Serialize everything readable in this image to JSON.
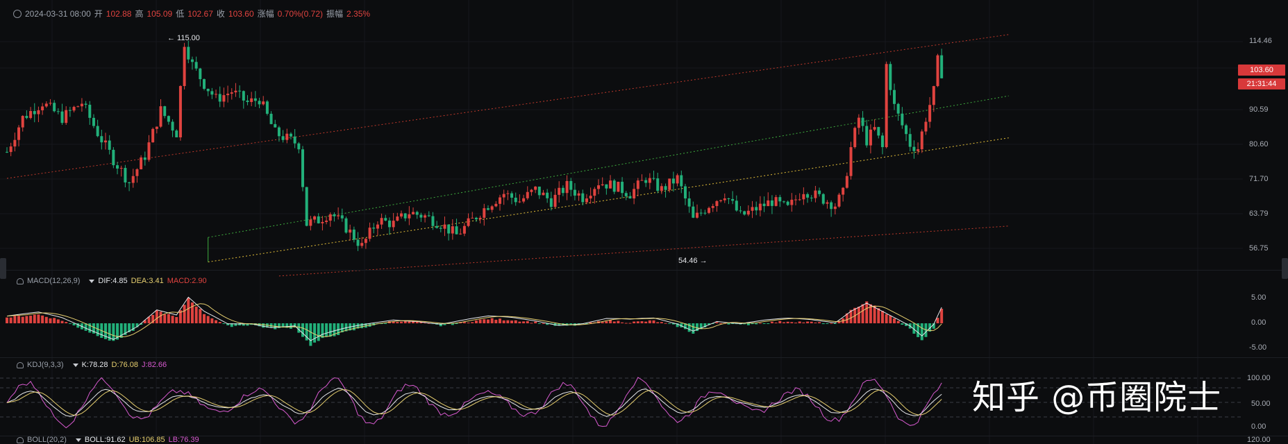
{
  "header": {
    "datetime": "2024-03-31 08:00",
    "open_label": "开",
    "open": "102.88",
    "high_label": "高",
    "high": "105.09",
    "low_label": "低",
    "low": "102.67",
    "close_label": "收",
    "close": "103.60",
    "change_label": "涨幅",
    "change": "0.70%(0.72)",
    "amp_label": "振幅",
    "amp": "2.35%"
  },
  "price_axis": [
    "114.46",
    "103.60",
    "90.59",
    "80.60",
    "71.70",
    "63.79",
    "56.75"
  ],
  "current_price_tag": "103.60",
  "time_tag": "21:31:44",
  "annotations": {
    "high": "← 115.00",
    "low": "54.46 →"
  },
  "macd": {
    "name": "MACD(12,26,9)",
    "dif_label": "DIF:",
    "dif": "4.85",
    "dea_label": "DEA:",
    "dea": "3.41",
    "macd_label": "MACD:",
    "macd": "2.90",
    "axis": [
      "5.00",
      "0.00",
      "-5.00"
    ]
  },
  "kdj": {
    "name": "KDJ(9,3,3)",
    "k_label": "K:",
    "k": "78.28",
    "d_label": "D:",
    "d": "76.08",
    "j_label": "J:",
    "j": "82.66",
    "axis": [
      "100.00",
      "50.00",
      "0.00"
    ]
  },
  "boll": {
    "name": "BOLL(20,2)",
    "boll_label": "BOLL:",
    "boll": "91.62",
    "ub_label": "UB:",
    "ub": "106.85",
    "lb_label": "LB:",
    "lb": "76.39",
    "axis": [
      "120.00"
    ]
  },
  "watermark": "知乎 @币圈院士",
  "colors": {
    "up": "#e0433f",
    "down": "#22b07a",
    "bg": "#0c0d0f",
    "channel_red": "#c0392b",
    "channel_green": "#3fae3f",
    "channel_yellow": "#e6c13a"
  },
  "chart_data": {
    "type": "candlestick",
    "ylim": [
      52,
      118
    ],
    "anchors": [
      [
        0,
        83
      ],
      [
        4,
        92
      ],
      [
        9,
        96
      ],
      [
        14,
        92
      ],
      [
        19,
        96
      ],
      [
        23,
        88
      ],
      [
        27,
        81
      ],
      [
        31,
        75
      ],
      [
        35,
        82
      ],
      [
        39,
        94
      ],
      [
        43,
        88
      ],
      [
        45,
        112
      ],
      [
        47,
        106
      ],
      [
        50,
        101
      ],
      [
        53,
        97
      ],
      [
        57,
        99
      ],
      [
        61,
        96
      ],
      [
        64,
        97
      ],
      [
        68,
        88
      ],
      [
        72,
        86
      ],
      [
        74,
        85
      ],
      [
        76,
        64
      ],
      [
        79,
        65
      ],
      [
        82,
        67
      ],
      [
        86,
        63
      ],
      [
        90,
        58
      ],
      [
        94,
        65
      ],
      [
        98,
        64
      ],
      [
        102,
        67
      ],
      [
        106,
        66
      ],
      [
        110,
        64
      ],
      [
        114,
        61
      ],
      [
        118,
        65
      ],
      [
        122,
        69
      ],
      [
        126,
        72
      ],
      [
        130,
        70
      ],
      [
        134,
        73
      ],
      [
        138,
        70
      ],
      [
        142,
        74
      ],
      [
        146,
        71
      ],
      [
        150,
        75
      ],
      [
        154,
        74
      ],
      [
        158,
        72
      ],
      [
        162,
        76
      ],
      [
        166,
        73
      ],
      [
        170,
        76
      ],
      [
        174,
        65
      ],
      [
        178,
        69
      ],
      [
        182,
        72
      ],
      [
        186,
        66
      ],
      [
        190,
        68
      ],
      [
        194,
        70
      ],
      [
        198,
        68
      ],
      [
        202,
        73
      ],
      [
        206,
        71
      ],
      [
        210,
        69
      ],
      [
        212,
        72
      ],
      [
        214,
        84
      ],
      [
        216,
        92
      ],
      [
        218,
        86
      ],
      [
        220,
        89
      ],
      [
        222,
        84
      ],
      [
        223,
        106
      ],
      [
        225,
        95
      ],
      [
        227,
        90
      ],
      [
        229,
        85
      ],
      [
        231,
        84
      ],
      [
        233,
        92
      ],
      [
        235,
        99
      ],
      [
        236,
        107
      ],
      [
        237,
        104
      ]
    ],
    "macd_anchors": [
      [
        0,
        1.2
      ],
      [
        8,
        1.8
      ],
      [
        14,
        0.6
      ],
      [
        20,
        -1.5
      ],
      [
        27,
        -3.8
      ],
      [
        33,
        -1.0
      ],
      [
        38,
        2.6
      ],
      [
        43,
        1.2
      ],
      [
        46,
        5.2
      ],
      [
        50,
        2.0
      ],
      [
        56,
        -0.6
      ],
      [
        62,
        -0.3
      ],
      [
        67,
        -1.1
      ],
      [
        73,
        -0.9
      ],
      [
        77,
        -4.5
      ],
      [
        80,
        -3.2
      ],
      [
        86,
        -1.8
      ],
      [
        92,
        -0.6
      ],
      [
        98,
        0.5
      ],
      [
        104,
        0.3
      ],
      [
        110,
        -0.5
      ],
      [
        116,
        0.2
      ],
      [
        122,
        0.9
      ],
      [
        128,
        0.7
      ],
      [
        134,
        0.2
      ],
      [
        140,
        -0.6
      ],
      [
        146,
        -0.3
      ],
      [
        152,
        0.6
      ],
      [
        158,
        0.2
      ],
      [
        164,
        0.5
      ],
      [
        170,
        -0.6
      ],
      [
        174,
        -2.0
      ],
      [
        180,
        0.3
      ],
      [
        186,
        -0.4
      ],
      [
        192,
        0.1
      ],
      [
        198,
        0.4
      ],
      [
        204,
        0.2
      ],
      [
        210,
        -0.2
      ],
      [
        214,
        2.6
      ],
      [
        218,
        4.5
      ],
      [
        222,
        2.5
      ],
      [
        226,
        0.4
      ],
      [
        229,
        -1.2
      ],
      [
        232,
        -3.6
      ],
      [
        235,
        -1.0
      ],
      [
        237,
        2.9
      ]
    ],
    "channels": [
      {
        "color": "red",
        "points": [
          [
            0,
            76.0
          ],
          [
            254,
            114.0
          ]
        ]
      },
      {
        "color": "green",
        "points": [
          [
            51,
            60.4
          ],
          [
            254,
            97.8
          ]
        ]
      },
      {
        "color": "yellow",
        "points": [
          [
            51,
            53.9
          ],
          [
            254,
            86.7
          ]
        ]
      },
      {
        "color": "red",
        "points": [
          [
            69,
            50.2
          ],
          [
            254,
            63.4
          ]
        ]
      }
    ]
  }
}
